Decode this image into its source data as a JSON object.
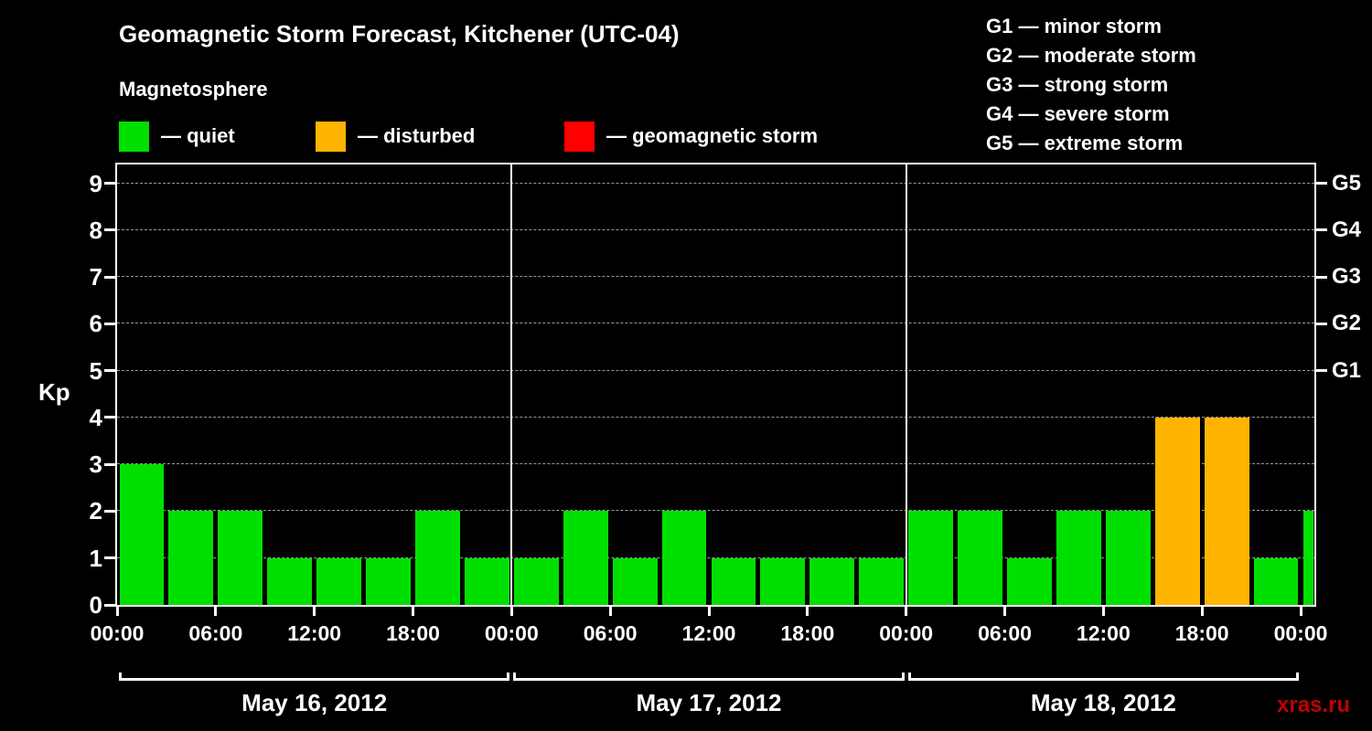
{
  "title": "Geomagnetic Storm Forecast, Kitchener (UTC-04)",
  "subtitle": "Magnetosphere",
  "kp_axis_label": "Kp",
  "watermark": "xras.ru",
  "colors": {
    "background": "#000000",
    "text": "#ffffff",
    "quiet": "#00e000",
    "disturbed": "#ffb400",
    "storm": "#ff0000",
    "grid": "#999999",
    "watermark": "#c00000"
  },
  "legend": [
    {
      "key": "quiet",
      "label": "— quiet"
    },
    {
      "key": "disturbed",
      "label": "— disturbed"
    },
    {
      "key": "storm",
      "label": "— geomagnetic storm"
    }
  ],
  "g_legend": [
    "G1 — minor storm",
    "G2 — moderate storm",
    "G3 — strong storm",
    "G4 — severe storm",
    "G5 — extreme storm"
  ],
  "chart_data": {
    "type": "bar",
    "title": "Geomagnetic Storm Forecast, Kitchener (UTC-04)",
    "ylabel": "Kp",
    "ylim": [
      0,
      9.4
    ],
    "yticks": [
      0,
      1,
      2,
      3,
      4,
      5,
      6,
      7,
      8,
      9
    ],
    "right_axis": [
      {
        "label": "G5",
        "kp": 9
      },
      {
        "label": "G4",
        "kp": 8
      },
      {
        "label": "G3",
        "kp": 7
      },
      {
        "label": "G2",
        "kp": 6
      },
      {
        "label": "G1",
        "kp": 5
      }
    ],
    "bar_interval_hours": 3,
    "x_ticks": [
      {
        "hour": 0,
        "label": "00:00"
      },
      {
        "hour": 6,
        "label": "06:00"
      },
      {
        "hour": 12,
        "label": "12:00"
      },
      {
        "hour": 18,
        "label": "18:00"
      },
      {
        "hour": 24,
        "label": "00:00"
      },
      {
        "hour": 30,
        "label": "06:00"
      },
      {
        "hour": 36,
        "label": "12:00"
      },
      {
        "hour": 42,
        "label": "18:00"
      },
      {
        "hour": 48,
        "label": "00:00"
      },
      {
        "hour": 54,
        "label": "06:00"
      },
      {
        "hour": 60,
        "label": "12:00"
      },
      {
        "hour": 66,
        "label": "18:00"
      },
      {
        "hour": 72,
        "label": "00:00"
      }
    ],
    "days": [
      {
        "date": "May 16, 2012",
        "values": [
          3,
          2,
          2,
          1,
          1,
          1,
          2,
          1
        ]
      },
      {
        "date": "May 17, 2012",
        "values": [
          1,
          2,
          1,
          2,
          1,
          1,
          1,
          1
        ]
      },
      {
        "date": "May 18, 2012",
        "values": [
          2,
          2,
          1,
          2,
          2,
          4,
          4,
          1
        ]
      }
    ],
    "partial_next_bar": {
      "value": 2
    },
    "status_rule": {
      "storm_min_kp": 5,
      "disturbed_min_kp": 4
    },
    "grid": true,
    "legend_position": "top"
  }
}
